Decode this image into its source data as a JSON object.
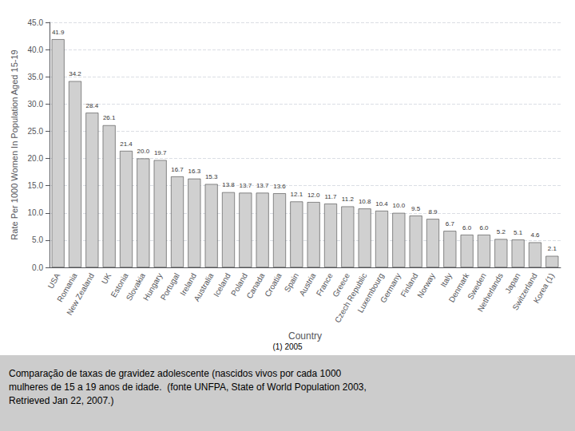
{
  "chart_data": {
    "type": "bar",
    "categories": [
      "USA",
      "Romania",
      "New Zealand",
      "UK",
      "Estonia",
      "Slovakia",
      "Hungary",
      "Portugal",
      "Ireland",
      "Australia",
      "Iceland",
      "Poland",
      "Canada",
      "Croatia",
      "Spain",
      "Austria",
      "France",
      "Greece",
      "Czech Republic",
      "Luxembourg",
      "Germany",
      "Finland",
      "Norway",
      "Italy",
      "Denmark",
      "Sweden",
      "Netherlands",
      "Japan",
      "Switzerland",
      "Korea (1)"
    ],
    "values": [
      41.9,
      34.2,
      28.4,
      26.1,
      21.4,
      20.0,
      19.7,
      16.7,
      16.3,
      15.3,
      13.8,
      13.7,
      13.7,
      13.6,
      12.1,
      12.0,
      11.7,
      11.2,
      10.8,
      10.4,
      10.0,
      9.5,
      8.9,
      6.7,
      6.0,
      6.0,
      5.2,
      5.1,
      4.6,
      2.1
    ],
    "value_labels": [
      "41.9",
      "34.2",
      "28.4",
      "26.1",
      "21.4",
      "20.0",
      "19.7",
      "16.7",
      "16.3",
      "15.3",
      "13.8",
      "13.7",
      "13.7",
      "13.6",
      "12.1",
      "12.0",
      "11.7",
      "11.2",
      "10.8",
      "10.4",
      "10.0",
      "9.5",
      "8.9",
      "6.7",
      "6.0",
      "6.0",
      "5.2",
      "5.1",
      "4.6",
      "2.1"
    ],
    "data_labels": true,
    "color": "#d0d0d0",
    "xlabel": "Country",
    "ylabel": "Rate Per 1000 Women In Population Aged 15-19",
    "ylim": [
      0.0,
      45.0
    ],
    "yticks": [
      {
        "value": 0,
        "label": "0.0"
      },
      {
        "value": 5,
        "label": "5.0"
      },
      {
        "value": 10,
        "label": "10.0"
      },
      {
        "value": 15,
        "label": "15.0"
      },
      {
        "value": 20,
        "label": "20.0"
      },
      {
        "value": 25,
        "label": "25.0"
      },
      {
        "value": 30,
        "label": "30.0"
      },
      {
        "value": 35,
        "label": "35.0"
      },
      {
        "value": 40,
        "label": "40.0"
      },
      {
        "value": 45,
        "label": "45.0"
      }
    ],
    "grid": true,
    "annotations": [
      "(1) 2005",
      "Comparação de taxas de gravidez adolescente (nascidos vivos por cada 1000\nmulheres de 15 a 19 anos de idade.  (fonte UNFPA, State of World Population 2003,\nRetrieved Jan 22, 2007.)"
    ]
  }
}
